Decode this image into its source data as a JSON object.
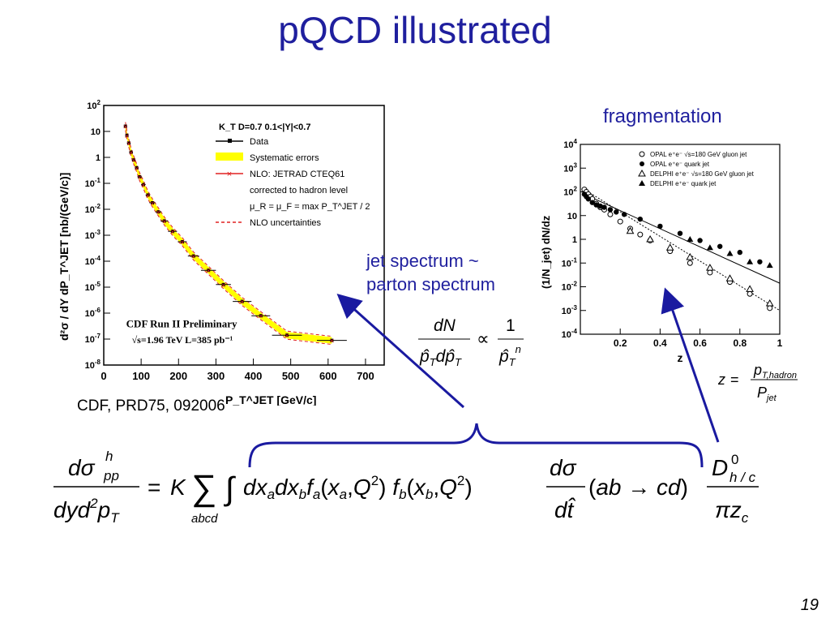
{
  "slide": {
    "title": "pQCD illustrated",
    "fragmentation_label": "fragmentation",
    "jet_label_line1": "jet spectrum ~",
    "jet_label_line2": "parton spectrum",
    "citation": "CDF, PRD75, 092006",
    "page_number": "19",
    "arrow_color": "#1a1aa0"
  },
  "chart_data": [
    {
      "type": "scatter",
      "xlabel": "P_T^JET [GeV/c]",
      "ylabel": "d²σ / dY dP_T^JET [nb/(GeV/c)]",
      "xlim": [
        0,
        750
      ],
      "ylim_log10": [
        -8,
        2
      ],
      "x_ticks": [
        "0",
        "100",
        "200",
        "300",
        "400",
        "500",
        "600",
        "700"
      ],
      "y_ticks": [
        "10^-8",
        "10^-7",
        "10^-6",
        "10^-5",
        "10^-4",
        "10^-3",
        "10^-2",
        "10^-1",
        "1",
        "10",
        "10^2"
      ],
      "legend_title": "K_T   D=0.7   0.1<|Y|<0.7",
      "legend_items": [
        {
          "label": "Data",
          "color": "#000000"
        },
        {
          "label": "Systematic errors",
          "color": "#ffff00"
        },
        {
          "label": "NLO: JETRAD CTEQ61",
          "color": "#e02020"
        },
        {
          "label": "corrected to hadron level",
          "color": ""
        },
        {
          "label": "μ_R = μ_F = max P_T^JET / 2",
          "color": ""
        },
        {
          "label": "NLO uncertainties",
          "color": "#e02020"
        }
      ],
      "annotation_1": "CDF Run II Preliminary",
      "annotation_2": "√s=1.96 TeV   L=385 pb⁻¹",
      "series": [
        {
          "name": "Data",
          "x": [
            58,
            62,
            67,
            73,
            80,
            88,
            96,
            106,
            118,
            130,
            146,
            162,
            184,
            210,
            240,
            280,
            320,
            370,
            420,
            490,
            610
          ],
          "y_log10": [
            1.2,
            0.85,
            0.55,
            0.2,
            -0.1,
            -0.4,
            -0.75,
            -1.05,
            -1.45,
            -1.75,
            -2.1,
            -2.45,
            -2.85,
            -3.25,
            -3.8,
            -4.35,
            -4.9,
            -5.55,
            -6.1,
            -6.85,
            -7.05
          ],
          "xerr": [
            4,
            4,
            5,
            5,
            5,
            5,
            6,
            6,
            6,
            8,
            8,
            10,
            12,
            12,
            15,
            20,
            20,
            25,
            25,
            40,
            40
          ]
        }
      ]
    },
    {
      "type": "scatter",
      "xlabel": "z",
      "ylabel": "(1/N_jet) dN/dz",
      "xlim": [
        0,
        1
      ],
      "ylim_log10": [
        -4,
        4
      ],
      "x_ticks": [
        "0.2",
        "0.4",
        "0.6",
        "0.8",
        "1"
      ],
      "y_ticks": [
        "10^-4",
        "10^-3",
        "10^-2",
        "10^-1",
        "1",
        "10",
        "10^2",
        "10^3",
        "10^4"
      ],
      "legend_items": [
        {
          "label": "OPAL e⁺e⁻ √s=180 GeV gluon jet",
          "marker": "open-circle"
        },
        {
          "label": "OPAL e⁺e⁻ quark jet",
          "marker": "filled-circle"
        },
        {
          "label": "DELPHI e⁺e⁻ √s=180 GeV gluon jet",
          "marker": "open-triangle"
        },
        {
          "label": "DELPHI e⁺e⁻ quark jet",
          "marker": "filled-triangle"
        }
      ],
      "series": [
        {
          "name": "OPAL e⁺e⁻ √s=180 GeV gluon jet",
          "x": [
            0.02,
            0.03,
            0.04,
            0.05,
            0.06,
            0.08,
            0.1,
            0.12,
            0.15,
            0.2,
            0.25,
            0.3,
            0.35,
            0.45,
            0.55,
            0.65,
            0.75,
            0.85,
            0.95
          ],
          "y_log10": [
            2.1,
            2.0,
            1.9,
            1.8,
            1.7,
            1.5,
            1.35,
            1.25,
            1.05,
            0.75,
            0.45,
            0.2,
            -0.05,
            -0.5,
            -1.0,
            -1.4,
            -1.8,
            -2.3,
            -2.9
          ]
        },
        {
          "name": "OPAL e⁺e⁻ quark jet",
          "x": [
            0.02,
            0.03,
            0.04,
            0.06,
            0.08,
            0.1,
            0.12,
            0.15,
            0.18,
            0.22,
            0.3,
            0.4,
            0.5,
            0.6,
            0.7,
            0.8,
            0.9
          ],
          "y_log10": [
            1.9,
            1.8,
            1.7,
            1.55,
            1.45,
            1.4,
            1.35,
            1.25,
            1.15,
            1.05,
            0.85,
            0.55,
            0.25,
            -0.05,
            -0.3,
            -0.55,
            -0.95
          ]
        },
        {
          "name": "DELPHI e⁺e⁻ √s=180 GeV gluon jet",
          "x": [
            0.25,
            0.35,
            0.45,
            0.55,
            0.65,
            0.75,
            0.85,
            0.95
          ],
          "y_log10": [
            0.35,
            0.0,
            -0.35,
            -0.75,
            -1.2,
            -1.65,
            -2.1,
            -2.7
          ]
        },
        {
          "name": "DELPHI e⁺e⁻ quark jet",
          "x": [
            0.55,
            0.65,
            0.75,
            0.85,
            0.95
          ],
          "y_log10": [
            0.0,
            -0.35,
            -0.6,
            -0.95,
            -1.1
          ]
        }
      ]
    }
  ],
  "formulas": {
    "prop_num": "dN",
    "prop_den": "p̂_T dp̂_T",
    "prop_symbol": "∝",
    "prop_num2": "1",
    "prop_den2": "p̂_T^n",
    "z_def": "z = p_T,hadron / P_jet",
    "main": "dσ^h_pp / dy d²p_T = K Σ_abcd ∫ dx_a dx_b f_a(x_a, Q²) f_b(x_b, Q²) dσ/dt̂ (ab → cd) D⁰_h/c / πz_c"
  }
}
